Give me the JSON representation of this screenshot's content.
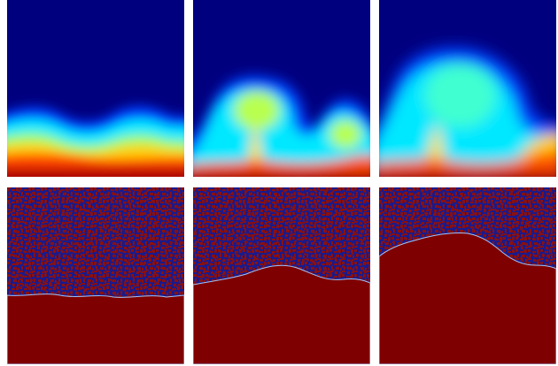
{
  "figure": {
    "colors": {
      "background": "#ffffff",
      "low": "#00007f",
      "high": "#7f0000",
      "mid_cyan": "#00ffff",
      "mid_yellow": "#ffff00"
    },
    "top_row": [
      {
        "panel": "concentration-t1",
        "colormap": "jet"
      },
      {
        "panel": "concentration-t2",
        "colormap": "jet"
      },
      {
        "panel": "concentration-t3",
        "colormap": "jet"
      }
    ],
    "bottom_row": [
      {
        "panel": "phase-t1",
        "colormap": "binary-red-blue"
      },
      {
        "panel": "phase-t2",
        "colormap": "binary-red-blue"
      },
      {
        "panel": "phase-t3",
        "colormap": "binary-red-blue"
      }
    ]
  }
}
